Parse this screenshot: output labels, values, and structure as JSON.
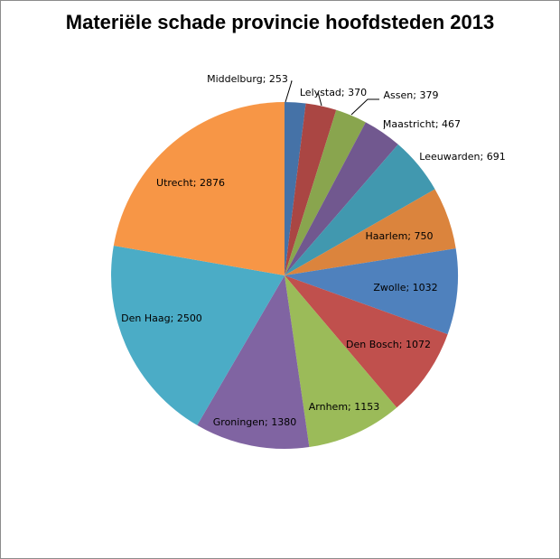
{
  "chart_data": {
    "type": "pie",
    "title": "Materiële schade provincie hoofdsteden 2013",
    "slices": [
      {
        "name": "Middelburg",
        "value": 253,
        "label": "Middelburg; 253",
        "color": "#4572A7"
      },
      {
        "name": "Lelystad",
        "value": 370,
        "label": "Lelystad; 370",
        "color": "#AA4643"
      },
      {
        "name": "Assen",
        "value": 379,
        "label": "Assen; 379",
        "color": "#89A54E"
      },
      {
        "name": "Maastricht",
        "value": 467,
        "label": "Maastricht; 467",
        "color": "#71588F"
      },
      {
        "name": "Leeuwarden",
        "value": 691,
        "label": "Leeuwarden;  691",
        "color": "#4198AF"
      },
      {
        "name": "Haarlem",
        "value": 750,
        "label": "Haarlem; 750",
        "color": "#DB843D"
      },
      {
        "name": "Zwolle",
        "value": 1032,
        "label": "Zwolle; 1032",
        "color": "#4F81BD"
      },
      {
        "name": "Den Bosch",
        "value": 1072,
        "label": "Den Bosch; 1072",
        "color": "#C0504D"
      },
      {
        "name": "Arnhem",
        "value": 1153,
        "label": "Arnhem;  1153",
        "color": "#9BBB59"
      },
      {
        "name": "Groningen",
        "value": 1380,
        "label": "Groningen; 1380",
        "color": "#8064A2"
      },
      {
        "name": "Den Haag",
        "value": 2500,
        "label": "Den Haag; 2500",
        "color": "#4BACC6"
      },
      {
        "name": "Utrecht",
        "value": 2876,
        "label": "Utrecht;  2876",
        "color": "#F79646"
      }
    ],
    "start": "12 o'clock",
    "direction": "clockwise",
    "legend": "none"
  }
}
